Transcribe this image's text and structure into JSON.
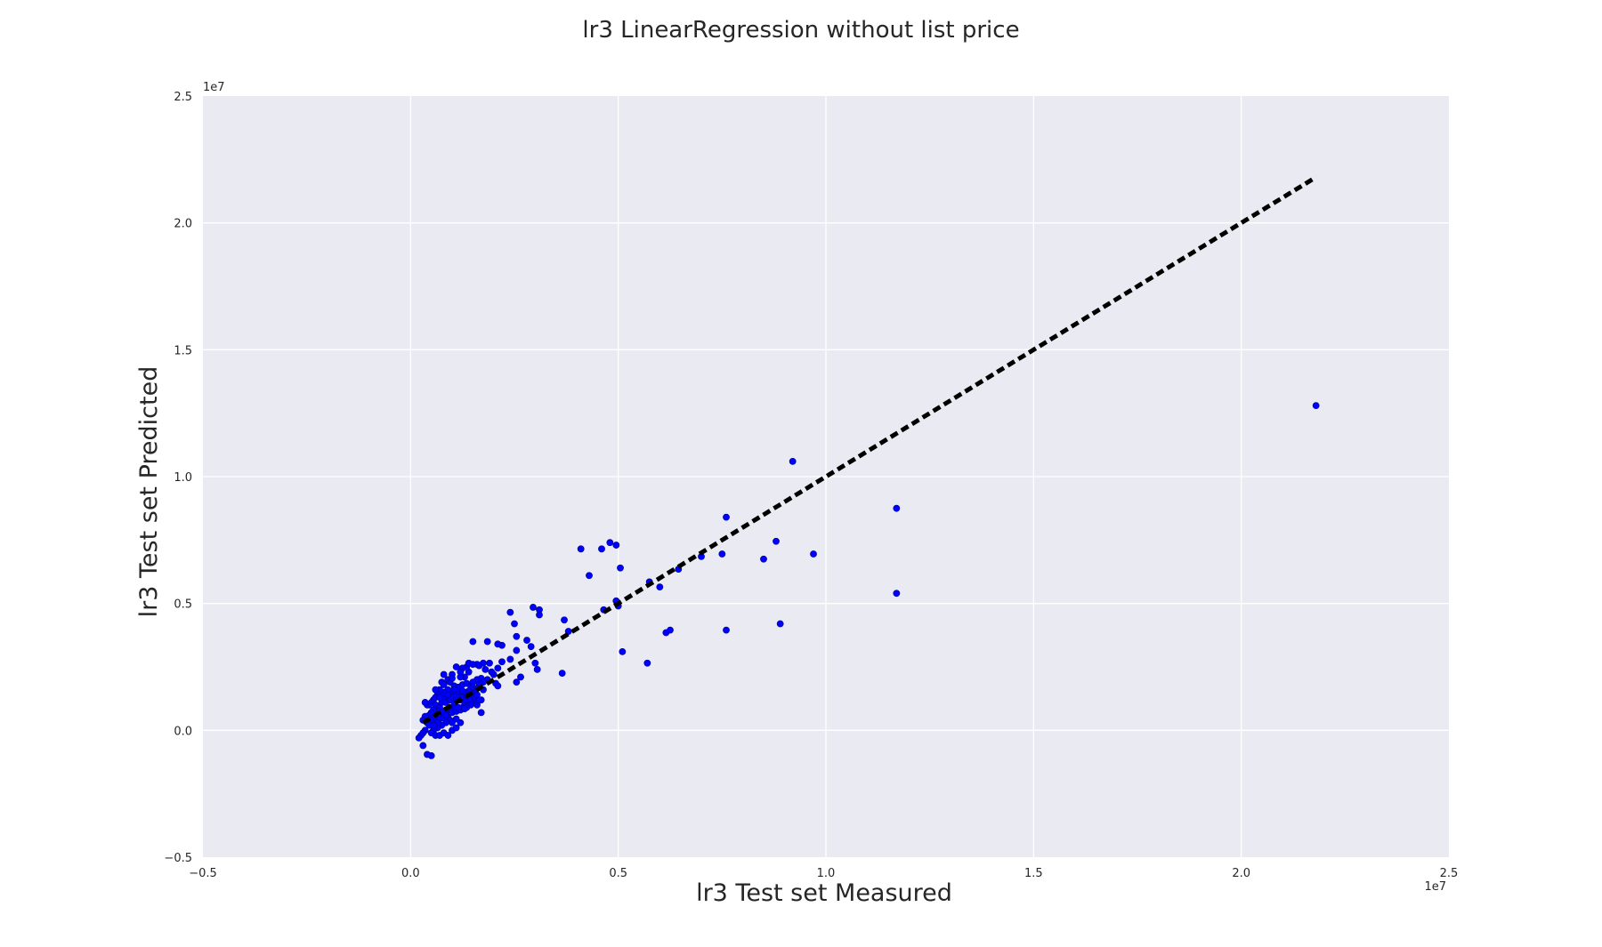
{
  "chart_data": {
    "type": "scatter",
    "title": "lr3 LinearRegression without list price",
    "xlabel": "lr3 Test set Measured",
    "ylabel": "lr3 Test set Predicted",
    "xlim": [
      -0.5,
      2.5
    ],
    "ylim": [
      -0.5,
      2.5
    ],
    "axis_scale_label": "1e7",
    "x_ticks": [
      "−0.5",
      "0.0",
      "0.5",
      "1.0",
      "1.5",
      "2.0",
      "2.5"
    ],
    "y_ticks": [
      "−0.5",
      "0.0",
      "0.5",
      "1.0",
      "1.5",
      "2.0",
      "2.5"
    ],
    "grid": true,
    "background_color": "#eaeaf2",
    "grid_color": "#ffffff",
    "point_color": "#0000ff",
    "reference_line": {
      "style": "dashed",
      "color": "#000000",
      "x": [
        0.03,
        2.18
      ],
      "y": [
        0.03,
        2.18
      ]
    },
    "points": [
      [
        2.18,
        1.28
      ],
      [
        0.92,
        1.06
      ],
      [
        1.17,
        0.875
      ],
      [
        1.17,
        0.54
      ],
      [
        0.76,
        0.84
      ],
      [
        0.88,
        0.745
      ],
      [
        0.85,
        0.675
      ],
      [
        0.97,
        0.695
      ],
      [
        0.75,
        0.695
      ],
      [
        0.7,
        0.685
      ],
      [
        0.645,
        0.635
      ],
      [
        0.6,
        0.565
      ],
      [
        0.575,
        0.585
      ],
      [
        0.5,
        0.49
      ],
      [
        0.48,
        0.74
      ],
      [
        0.495,
        0.73
      ],
      [
        0.41,
        0.715
      ],
      [
        0.46,
        0.715
      ],
      [
        0.505,
        0.64
      ],
      [
        0.43,
        0.61
      ],
      [
        0.76,
        0.395
      ],
      [
        0.89,
        0.42
      ],
      [
        0.615,
        0.385
      ],
      [
        0.625,
        0.395
      ],
      [
        0.51,
        0.31
      ],
      [
        0.57,
        0.265
      ],
      [
        0.365,
        0.225
      ],
      [
        0.465,
        0.475
      ],
      [
        0.495,
        0.51
      ],
      [
        0.37,
        0.435
      ],
      [
        0.38,
        0.39
      ],
      [
        0.295,
        0.485
      ],
      [
        0.31,
        0.475
      ],
      [
        0.31,
        0.455
      ],
      [
        0.24,
        0.465
      ],
      [
        0.25,
        0.42
      ],
      [
        0.255,
        0.37
      ],
      [
        0.28,
        0.355
      ],
      [
        0.29,
        0.33
      ],
      [
        0.3,
        0.265
      ],
      [
        0.305,
        0.24
      ],
      [
        0.265,
        0.21
      ],
      [
        0.255,
        0.19
      ],
      [
        0.255,
        0.315
      ],
      [
        0.22,
        0.335
      ],
      [
        0.21,
        0.34
      ],
      [
        0.185,
        0.35
      ],
      [
        0.15,
        0.35
      ],
      [
        0.24,
        0.28
      ],
      [
        0.22,
        0.27
      ],
      [
        0.21,
        0.245
      ],
      [
        0.2,
        0.22
      ],
      [
        0.19,
        0.265
      ],
      [
        0.175,
        0.265
      ],
      [
        0.165,
        0.255
      ],
      [
        0.16,
        0.26
      ],
      [
        0.18,
        0.24
      ],
      [
        0.195,
        0.23
      ],
      [
        0.205,
        0.185
      ],
      [
        0.21,
        0.175
      ],
      [
        0.185,
        0.2
      ],
      [
        0.17,
        0.205
      ],
      [
        0.175,
        0.19
      ],
      [
        0.165,
        0.185
      ],
      [
        0.16,
        0.2
      ],
      [
        0.155,
        0.16
      ],
      [
        0.17,
        0.12
      ],
      [
        0.17,
        0.07
      ],
      [
        0.15,
        0.12
      ],
      [
        0.16,
        0.1
      ],
      [
        0.14,
        0.23
      ],
      [
        0.135,
        0.25
      ],
      [
        0.125,
        0.245
      ],
      [
        0.14,
        0.265
      ],
      [
        0.15,
        0.26
      ],
      [
        0.13,
        0.21
      ],
      [
        0.12,
        0.21
      ],
      [
        0.12,
        0.23
      ],
      [
        0.11,
        0.25
      ],
      [
        0.1,
        0.22
      ],
      [
        0.09,
        0.2
      ],
      [
        0.08,
        0.22
      ],
      [
        0.075,
        0.19
      ],
      [
        0.08,
        0.18
      ],
      [
        0.095,
        0.19
      ],
      [
        0.105,
        0.175
      ],
      [
        0.115,
        0.17
      ],
      [
        0.125,
        0.18
      ],
      [
        0.135,
        0.185
      ],
      [
        0.145,
        0.175
      ],
      [
        0.15,
        0.19
      ],
      [
        0.14,
        0.155
      ],
      [
        0.13,
        0.15
      ],
      [
        0.12,
        0.14
      ],
      [
        0.11,
        0.15
      ],
      [
        0.1,
        0.15
      ],
      [
        0.09,
        0.16
      ],
      [
        0.085,
        0.14
      ],
      [
        0.08,
        0.15
      ],
      [
        0.07,
        0.16
      ],
      [
        0.065,
        0.14
      ],
      [
        0.06,
        0.13
      ],
      [
        0.055,
        0.12
      ],
      [
        0.05,
        0.11
      ],
      [
        0.045,
        0.1
      ],
      [
        0.04,
        0.1
      ],
      [
        0.035,
        0.11
      ],
      [
        0.06,
        0.1
      ],
      [
        0.07,
        0.09
      ],
      [
        0.075,
        0.11
      ],
      [
        0.08,
        0.12
      ],
      [
        0.085,
        0.11
      ],
      [
        0.09,
        0.13
      ],
      [
        0.095,
        0.12
      ],
      [
        0.1,
        0.13
      ],
      [
        0.105,
        0.11
      ],
      [
        0.11,
        0.12
      ],
      [
        0.115,
        0.13
      ],
      [
        0.12,
        0.12
      ],
      [
        0.125,
        0.13
      ],
      [
        0.13,
        0.11
      ],
      [
        0.135,
        0.12
      ],
      [
        0.14,
        0.13
      ],
      [
        0.145,
        0.12
      ],
      [
        0.15,
        0.14
      ],
      [
        0.155,
        0.13
      ],
      [
        0.16,
        0.14
      ],
      [
        0.165,
        0.12
      ],
      [
        0.145,
        0.1
      ],
      [
        0.135,
        0.09
      ],
      [
        0.125,
        0.09
      ],
      [
        0.115,
        0.08
      ],
      [
        0.105,
        0.085
      ],
      [
        0.095,
        0.09
      ],
      [
        0.085,
        0.08
      ],
      [
        0.075,
        0.07
      ],
      [
        0.065,
        0.075
      ],
      [
        0.055,
        0.08
      ],
      [
        0.05,
        0.07
      ],
      [
        0.045,
        0.06
      ],
      [
        0.04,
        0.05
      ],
      [
        0.035,
        0.055
      ],
      [
        0.03,
        0.04
      ],
      [
        0.04,
        0.03
      ],
      [
        0.05,
        0.04
      ],
      [
        0.06,
        0.05
      ],
      [
        0.07,
        0.045
      ],
      [
        0.08,
        0.05
      ],
      [
        0.09,
        0.06
      ],
      [
        0.1,
        0.07
      ],
      [
        0.11,
        0.075
      ],
      [
        0.12,
        0.08
      ],
      [
        0.13,
        0.085
      ],
      [
        0.095,
        0.04
      ],
      [
        0.085,
        0.03
      ],
      [
        0.075,
        0.02
      ],
      [
        0.065,
        0.01
      ],
      [
        0.055,
        0.0
      ],
      [
        0.045,
        0.02
      ],
      [
        0.035,
        0.0
      ],
      [
        0.03,
        -0.01
      ],
      [
        0.025,
        -0.02
      ],
      [
        0.02,
        -0.03
      ],
      [
        0.05,
        -0.01
      ],
      [
        0.06,
        -0.02
      ],
      [
        0.07,
        -0.02
      ],
      [
        0.08,
        -0.01
      ],
      [
        0.09,
        -0.02
      ],
      [
        0.1,
        0.0
      ],
      [
        0.11,
        0.01
      ],
      [
        0.12,
        0.03
      ],
      [
        0.1,
        0.03
      ],
      [
        0.11,
        0.045
      ],
      [
        0.065,
        0.03
      ],
      [
        0.055,
        0.02
      ],
      [
        0.085,
        0.06
      ],
      [
        0.05,
        -0.1
      ],
      [
        0.04,
        -0.095
      ],
      [
        0.03,
        -0.06
      ],
      [
        0.115,
        0.09
      ],
      [
        0.135,
        0.14
      ],
      [
        0.15,
        0.17
      ],
      [
        0.16,
        0.165
      ],
      [
        0.175,
        0.16
      ],
      [
        0.1,
        0.205
      ],
      [
        0.09,
        0.14
      ],
      [
        0.07,
        0.13
      ],
      [
        0.06,
        0.16
      ],
      [
        0.105,
        0.16
      ],
      [
        0.125,
        0.155
      ]
    ]
  }
}
